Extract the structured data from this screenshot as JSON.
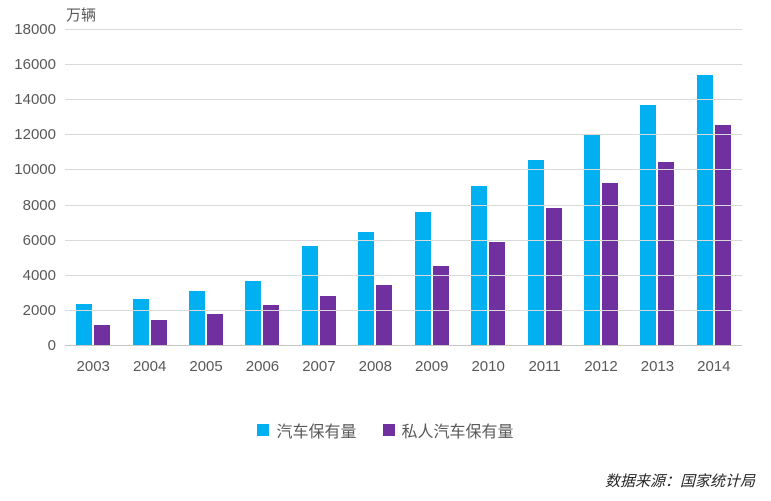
{
  "chart_data": {
    "type": "bar",
    "title": "",
    "unit_label": "万辆",
    "categories": [
      "2003",
      "2004",
      "2005",
      "2006",
      "2007",
      "2008",
      "2009",
      "2010",
      "2011",
      "2012",
      "2013",
      "2014"
    ],
    "series": [
      {
        "name": "汽车保有量",
        "color": "#00B0F0",
        "values": [
          2383,
          2694,
          3160,
          3697,
          5697,
          6467,
          7619,
          9086,
          10578,
          12089,
          13741,
          15447
        ]
      },
      {
        "name": "私人汽车保有量",
        "color": "#7030A0",
        "values": [
          1219,
          1482,
          1848,
          2333,
          2876,
          3501,
          4575,
          5939,
          7872,
          9309,
          10502,
          12584
        ]
      }
    ],
    "ylabel": "万辆",
    "xlabel": "",
    "ylim": [
      0,
      18000
    ],
    "yticks": [
      0,
      2000,
      4000,
      6000,
      8000,
      10000,
      12000,
      14000,
      16000,
      18000
    ],
    "grid": "horizontal",
    "legend_position": "bottom",
    "colors": {
      "grid": "#D9D9D9",
      "axis": "#C6C6C6",
      "tick_text": "#595959",
      "legend_text": "#595959",
      "source_text": "#262626"
    }
  },
  "footer": {
    "source": "数据来源：国家统计局"
  }
}
